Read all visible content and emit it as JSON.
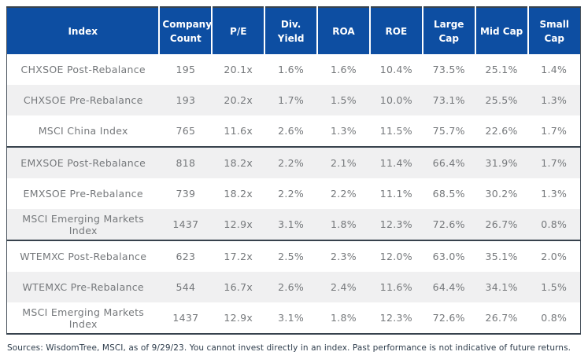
{
  "chart_data": {
    "type": "table",
    "columns": [
      "Index",
      "Company Count",
      "P/E",
      "Div. Yield",
      "ROA",
      "ROE",
      "Large Cap",
      "Mid Cap",
      "Small Cap"
    ],
    "groups": [
      {
        "name": "china-soe-group",
        "rows": [
          [
            "CHXSOE Post-Rebalance",
            "195",
            "20.1x",
            "1.6%",
            "1.6%",
            "10.4%",
            "73.5%",
            "25.1%",
            "1.4%"
          ],
          [
            "CHXSOE Pre-Rebalance",
            "193",
            "20.2x",
            "1.7%",
            "1.5%",
            "10.0%",
            "73.1%",
            "25.5%",
            "1.3%"
          ],
          [
            "MSCI China Index",
            "765",
            "11.6x",
            "2.6%",
            "1.3%",
            "11.5%",
            "75.7%",
            "22.6%",
            "1.7%"
          ]
        ]
      },
      {
        "name": "em-soe-group",
        "rows": [
          [
            "EMXSOE Post-Rebalance",
            "818",
            "18.2x",
            "2.2%",
            "2.1%",
            "11.4%",
            "66.4%",
            "31.9%",
            "1.7%"
          ],
          [
            "EMXSOE Pre-Rebalance",
            "739",
            "18.2x",
            "2.2%",
            "2.2%",
            "11.1%",
            "68.5%",
            "30.2%",
            "1.3%"
          ],
          [
            "MSCI Emerging Markets Index",
            "1437",
            "12.9x",
            "3.1%",
            "1.8%",
            "12.3%",
            "72.6%",
            "26.7%",
            "0.8%"
          ]
        ]
      },
      {
        "name": "em-exchina-group",
        "rows": [
          [
            "WTEMXC Post-Rebalance",
            "623",
            "17.2x",
            "2.5%",
            "2.3%",
            "12.0%",
            "63.0%",
            "35.1%",
            "2.0%"
          ],
          [
            "WTEMXC Pre-Rebalance",
            "544",
            "16.7x",
            "2.6%",
            "2.4%",
            "11.6%",
            "64.4%",
            "34.1%",
            "1.5%"
          ],
          [
            "MSCI Emerging Markets Index",
            "1437",
            "12.9x",
            "3.1%",
            "1.8%",
            "12.3%",
            "72.6%",
            "26.7%",
            "0.8%"
          ]
        ]
      }
    ]
  },
  "footer": {
    "text": "Sources: WisdomTree, MSCI, as of 9/29/23. You cannot invest directly in an index. Past performance is not indicative of future returns."
  },
  "colors": {
    "header_bg": "#0D4EA2",
    "header_text": "#FFFFFF",
    "group_border": "#37424D",
    "row_alt_bg": "#F0F0F1",
    "body_text": "#75787B",
    "footnote_text": "#2E3D4C"
  }
}
